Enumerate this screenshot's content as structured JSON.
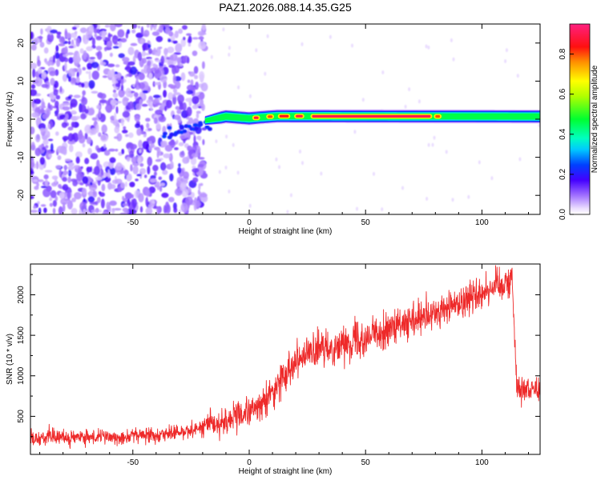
{
  "title": "PAZ1.2026.088.14.35.G25",
  "chart_data": [
    {
      "type": "heatmap",
      "xlabel": "Height of straight line (km)",
      "ylabel": "Frequency (Hz)",
      "xlim": [
        -94,
        125
      ],
      "ylim": [
        -25,
        25
      ],
      "xticks": [
        -50,
        0,
        50,
        100
      ],
      "yticks": [
        -20,
        -10,
        0,
        10,
        20
      ],
      "xtick_labels": [
        "-50",
        "0",
        "50",
        "100"
      ],
      "ytick_labels": [
        "-20",
        "-10",
        "0",
        "10",
        "20"
      ],
      "colorbar": {
        "label": "Normalized spectral amplitude",
        "range": [
          0,
          0.95
        ],
        "ticks": [
          0.0,
          0.2,
          0.4,
          0.6,
          0.8
        ],
        "tick_labels": [
          "0.0",
          "0.2",
          "0.4",
          "0.6",
          "0.8"
        ]
      },
      "noise_region_km": [
        -94,
        -19
      ],
      "transition_region_km": [
        -36,
        -17
      ],
      "signal_band": {
        "x_start_km": -19,
        "x_end_km": 125,
        "freq_center_hz": [
          [
            -20,
            -0.5
          ],
          [
            -10,
            0.7
          ],
          [
            0,
            0.2
          ],
          [
            5,
            0.5
          ],
          [
            12,
            0.8
          ],
          [
            125,
            0.7
          ]
        ],
        "halfwidth_hz": 1.3,
        "peak_segments": [
          {
            "x0": 2,
            "x1": 4,
            "amp": 0.9
          },
          {
            "x0": 8,
            "x1": 10,
            "amp": 0.8
          },
          {
            "x0": 13,
            "x1": 17,
            "amp": 0.85
          },
          {
            "x0": 20,
            "x1": 23,
            "amp": 0.9
          },
          {
            "x0": 27,
            "x1": 78,
            "amp": 0.9
          },
          {
            "x0": 80,
            "x1": 82,
            "amp": 0.8
          }
        ]
      }
    },
    {
      "type": "line",
      "xlabel": "Height of straight line (km)",
      "ylabel": "SNR (10 * v/v)",
      "xlim": [
        -94,
        125
      ],
      "ylim": [
        30,
        2380
      ],
      "xticks": [
        -50,
        0,
        50,
        100
      ],
      "yticks": [
        500,
        1000,
        1500,
        2000
      ],
      "xtick_labels": [
        "-50",
        "0",
        "50",
        "100"
      ],
      "ytick_labels": [
        "500",
        "1000",
        "1500",
        "2000"
      ],
      "line_color": "#ee2a2a",
      "trend": {
        "x": [
          -94,
          -60,
          -30,
          -10,
          5,
          10,
          20,
          50,
          75,
          110,
          113,
          115,
          125
        ],
        "y": [
          230,
          240,
          300,
          440,
          620,
          800,
          1220,
          1480,
          1700,
          2170,
          2200,
          850,
          830
        ]
      },
      "noise_amplitude": [
        {
          "x0": -94,
          "x1": -20,
          "amp": 90
        },
        {
          "x0": -20,
          "x1": 0,
          "amp": 170
        },
        {
          "x0": 0,
          "x1": 113,
          "amp": 210
        },
        {
          "x0": 113,
          "x1": 125,
          "amp": 140
        }
      ]
    }
  ]
}
